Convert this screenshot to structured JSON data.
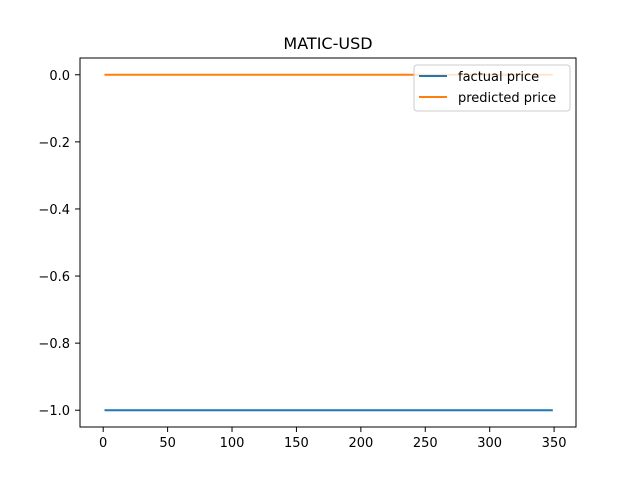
{
  "chart_data": {
    "type": "line",
    "title": "MATIC-USD",
    "xlabel": "",
    "ylabel": "",
    "xlim": [
      -18,
      367
    ],
    "ylim": [
      -1.05,
      0.05
    ],
    "x_ticks": [
      0,
      50,
      100,
      150,
      200,
      250,
      300,
      350
    ],
    "y_ticks": [
      0.0,
      -0.2,
      -0.4,
      -0.6,
      -0.8,
      -1.0
    ],
    "x_tick_labels": [
      "0",
      "50",
      "100",
      "150",
      "200",
      "250",
      "300",
      "350"
    ],
    "y_tick_labels": [
      "0.0",
      "−0.2",
      "−0.4",
      "−0.6",
      "−0.8",
      "−1.0"
    ],
    "series": [
      {
        "name": "factual price",
        "color": "#1f77b4",
        "x": [
          1,
          349
        ],
        "y": [
          -1.0,
          -1.0
        ]
      },
      {
        "name": "predicted price",
        "color": "#ff7f0e",
        "x": [
          1,
          349
        ],
        "y": [
          0.0,
          0.0
        ]
      }
    ],
    "legend": {
      "placement": "upper-right",
      "entries": [
        "factual price",
        "predicted price"
      ]
    },
    "grid": false
  }
}
